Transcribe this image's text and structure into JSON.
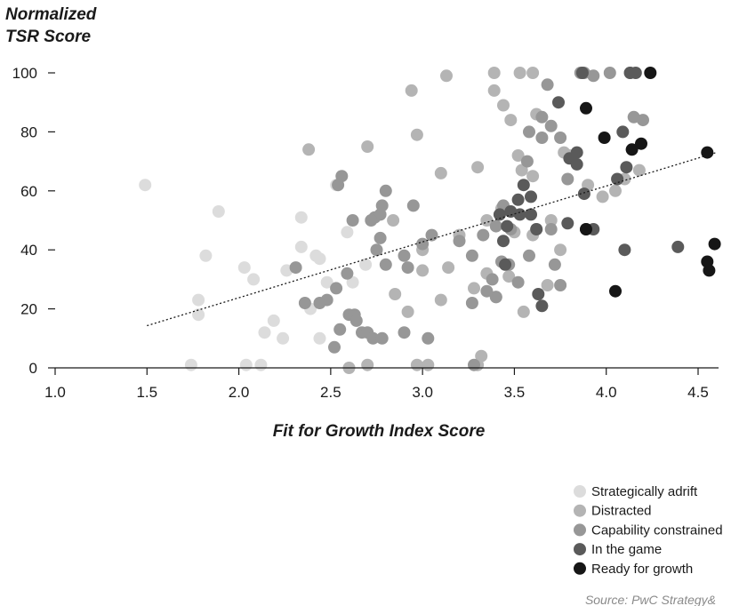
{
  "chart_data": {
    "type": "scatter",
    "ylabel_lines": [
      "Normalized",
      "TSR Score"
    ],
    "xlabel": "Fit for Growth Index Score",
    "source": "Source: PwC Strategy&",
    "xlim": [
      1.0,
      4.65
    ],
    "ylim": [
      0,
      100
    ],
    "xticks": [
      "1.0",
      "1.5",
      "2.0",
      "2.5",
      "3.0",
      "3.5",
      "4.0",
      "4.5"
    ],
    "yticks": [
      "0",
      "20",
      "40",
      "60",
      "80",
      "100"
    ],
    "grid": false,
    "legend_position": "bottom-right",
    "trendline": {
      "x": [
        1.5,
        4.6
      ],
      "y": [
        14.3,
        73
      ]
    },
    "series": [
      {
        "name": "Strategically adrift",
        "color": "#dcdcdc",
        "points": [
          [
            1.49,
            62
          ],
          [
            1.74,
            1
          ],
          [
            1.78,
            23
          ],
          [
            1.78,
            18
          ],
          [
            1.82,
            38
          ],
          [
            1.89,
            53
          ],
          [
            2.03,
            34
          ],
          [
            2.04,
            1
          ],
          [
            2.08,
            30
          ],
          [
            2.12,
            1
          ],
          [
            2.14,
            12
          ],
          [
            2.19,
            16
          ],
          [
            2.24,
            10
          ],
          [
            2.26,
            33
          ],
          [
            2.34,
            51
          ],
          [
            2.34,
            41
          ],
          [
            2.39,
            20
          ],
          [
            2.42,
            38
          ],
          [
            2.44,
            37
          ],
          [
            2.44,
            10
          ],
          [
            2.48,
            29
          ],
          [
            2.53,
            62
          ],
          [
            2.59,
            46
          ],
          [
            2.62,
            29
          ],
          [
            2.69,
            35
          ]
        ]
      },
      {
        "name": "Distracted",
        "color": "#b4b4b4",
        "points": [
          [
            2.94,
            94
          ],
          [
            3.13,
            99
          ],
          [
            3.39,
            100
          ],
          [
            3.53,
            100
          ],
          [
            3.6,
            100
          ],
          [
            3.39,
            94
          ],
          [
            2.7,
            75
          ],
          [
            2.97,
            79
          ],
          [
            3.44,
            89
          ],
          [
            3.48,
            84
          ],
          [
            3.62,
            86
          ],
          [
            3.77,
            73
          ],
          [
            3.8,
            72
          ],
          [
            3.52,
            72
          ],
          [
            3.54,
            67
          ],
          [
            3.6,
            65
          ],
          [
            3.43,
            54
          ],
          [
            3.35,
            50
          ],
          [
            3.5,
            46
          ],
          [
            3.62,
            47
          ],
          [
            3.0,
            40
          ],
          [
            3.1,
            66
          ],
          [
            3.3,
            68
          ],
          [
            2.85,
            25
          ],
          [
            2.92,
            19
          ],
          [
            3.0,
            33
          ],
          [
            3.14,
            34
          ],
          [
            3.1,
            23
          ],
          [
            3.35,
            32
          ],
          [
            3.28,
            27
          ],
          [
            3.4,
            24
          ],
          [
            3.47,
            31
          ],
          [
            3.55,
            19
          ],
          [
            3.6,
            45
          ],
          [
            3.7,
            50
          ],
          [
            3.75,
            40
          ],
          [
            3.9,
            62
          ],
          [
            3.98,
            58
          ],
          [
            4.05,
            60
          ],
          [
            4.1,
            64
          ],
          [
            4.18,
            67
          ],
          [
            3.68,
            28
          ],
          [
            3.32,
            4
          ],
          [
            3.3,
            1
          ],
          [
            3.03,
            1
          ],
          [
            2.97,
            1
          ],
          [
            2.7,
            1
          ],
          [
            2.6,
            0
          ],
          [
            2.38,
            74
          ],
          [
            2.84,
            50
          ],
          [
            3.2,
            45
          ]
        ]
      },
      {
        "name": "Capability constrained",
        "color": "#979797",
        "points": [
          [
            3.86,
            100
          ],
          [
            3.88,
            100
          ],
          [
            4.02,
            100
          ],
          [
            4.13,
            100
          ],
          [
            3.93,
            99
          ],
          [
            3.68,
            96
          ],
          [
            3.65,
            85
          ],
          [
            3.58,
            80
          ],
          [
            3.57,
            70
          ],
          [
            3.65,
            78
          ],
          [
            3.7,
            82
          ],
          [
            3.75,
            78
          ],
          [
            3.79,
            64
          ],
          [
            3.4,
            48
          ],
          [
            3.43,
            36
          ],
          [
            3.33,
            45
          ],
          [
            3.27,
            38
          ],
          [
            3.2,
            43
          ],
          [
            3.05,
            45
          ],
          [
            3.0,
            42
          ],
          [
            2.9,
            38
          ],
          [
            2.92,
            34
          ],
          [
            2.95,
            55
          ],
          [
            2.8,
            60
          ],
          [
            2.78,
            55
          ],
          [
            2.77,
            52
          ],
          [
            2.74,
            51
          ],
          [
            2.72,
            50
          ],
          [
            2.77,
            44
          ],
          [
            2.75,
            40
          ],
          [
            2.8,
            35
          ],
          [
            2.62,
            50
          ],
          [
            2.56,
            65
          ],
          [
            2.54,
            62
          ],
          [
            2.59,
            32
          ],
          [
            2.53,
            27
          ],
          [
            2.48,
            23
          ],
          [
            2.55,
            13
          ],
          [
            2.52,
            7
          ],
          [
            2.6,
            18
          ],
          [
            2.63,
            18
          ],
          [
            2.64,
            16
          ],
          [
            2.67,
            12
          ],
          [
            2.7,
            12
          ],
          [
            2.73,
            10
          ],
          [
            2.78,
            10
          ],
          [
            2.9,
            12
          ],
          [
            3.03,
            10
          ],
          [
            3.28,
            1
          ],
          [
            3.4,
            24
          ],
          [
            3.35,
            26
          ],
          [
            3.44,
            55
          ],
          [
            3.48,
            47
          ],
          [
            3.58,
            38
          ],
          [
            3.7,
            47
          ],
          [
            3.72,
            35
          ],
          [
            3.75,
            28
          ],
          [
            4.15,
            85
          ],
          [
            4.2,
            84
          ],
          [
            3.52,
            29
          ],
          [
            3.47,
            35
          ],
          [
            3.38,
            30
          ],
          [
            3.27,
            22
          ],
          [
            2.36,
            22
          ],
          [
            2.31,
            34
          ],
          [
            2.44,
            22
          ]
        ]
      },
      {
        "name": "In the game",
        "color": "#5a5a5a",
        "points": [
          [
            3.87,
            100
          ],
          [
            4.13,
            100
          ],
          [
            4.16,
            100
          ],
          [
            3.74,
            90
          ],
          [
            3.8,
            71
          ],
          [
            3.84,
            73
          ],
          [
            3.84,
            69
          ],
          [
            4.09,
            80
          ],
          [
            4.11,
            68
          ],
          [
            4.06,
            64
          ],
          [
            3.88,
            59
          ],
          [
            3.59,
            58
          ],
          [
            3.55,
            62
          ],
          [
            3.52,
            57
          ],
          [
            3.53,
            52
          ],
          [
            3.59,
            52
          ],
          [
            3.62,
            47
          ],
          [
            3.79,
            49
          ],
          [
            3.93,
            47
          ],
          [
            3.89,
            47
          ],
          [
            4.1,
            40
          ],
          [
            4.39,
            41
          ],
          [
            3.63,
            25
          ],
          [
            3.65,
            21
          ],
          [
            3.48,
            53
          ],
          [
            3.46,
            48
          ],
          [
            3.42,
            52
          ],
          [
            3.45,
            35
          ],
          [
            3.44,
            43
          ]
        ]
      },
      {
        "name": "Ready for growth",
        "color": "#161616",
        "points": [
          [
            4.24,
            100
          ],
          [
            3.89,
            88
          ],
          [
            3.99,
            78
          ],
          [
            4.14,
            74
          ],
          [
            4.19,
            76
          ],
          [
            4.55,
            73
          ],
          [
            4.59,
            42
          ],
          [
            4.55,
            36
          ],
          [
            4.56,
            33
          ],
          [
            4.05,
            26
          ],
          [
            3.89,
            47
          ]
        ]
      }
    ]
  }
}
